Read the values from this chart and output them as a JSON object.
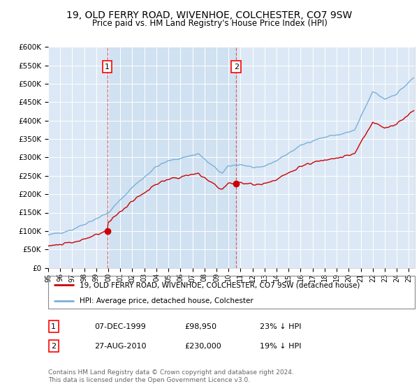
{
  "title": "19, OLD FERRY ROAD, WIVENHOE, COLCHESTER, CO7 9SW",
  "subtitle": "Price paid vs. HM Land Registry's House Price Index (HPI)",
  "hpi_label": "HPI: Average price, detached house, Colchester",
  "price_label": "19, OLD FERRY ROAD, WIVENHOE, COLCHESTER, CO7 9SW (detached house)",
  "footer1": "Contains HM Land Registry data © Crown copyright and database right 2024.",
  "footer2": "This data is licensed under the Open Government Licence v3.0.",
  "annotation1": {
    "num": "1",
    "date": "07-DEC-1999",
    "price": "£98,950",
    "pct": "23% ↓ HPI"
  },
  "annotation2": {
    "num": "2",
    "date": "27-AUG-2010",
    "price": "£230,000",
    "pct": "19% ↓ HPI"
  },
  "sale1_x": 1999.917,
  "sale1_y": 98950,
  "sale2_x": 2010.646,
  "sale2_y": 230000,
  "ylim": [
    0,
    600000
  ],
  "xlim_start": 1995.0,
  "xlim_end": 2025.5,
  "ytick_values": [
    0,
    50000,
    100000,
    150000,
    200000,
    250000,
    300000,
    350000,
    400000,
    450000,
    500000,
    550000,
    600000
  ],
  "ytick_labels": [
    "£0",
    "£50K",
    "£100K",
    "£150K",
    "£200K",
    "£250K",
    "£300K",
    "£350K",
    "£400K",
    "£450K",
    "£500K",
    "£550K",
    "£600K"
  ],
  "plot_bg": "#dce8f5",
  "hpi_color": "#7ab0d8",
  "price_color": "#cc0000",
  "shade_color": "#c8ddef",
  "grid_color": "#ffffff",
  "vline_color": "#dd4444",
  "title_fontsize": 10,
  "subtitle_fontsize": 8.5
}
